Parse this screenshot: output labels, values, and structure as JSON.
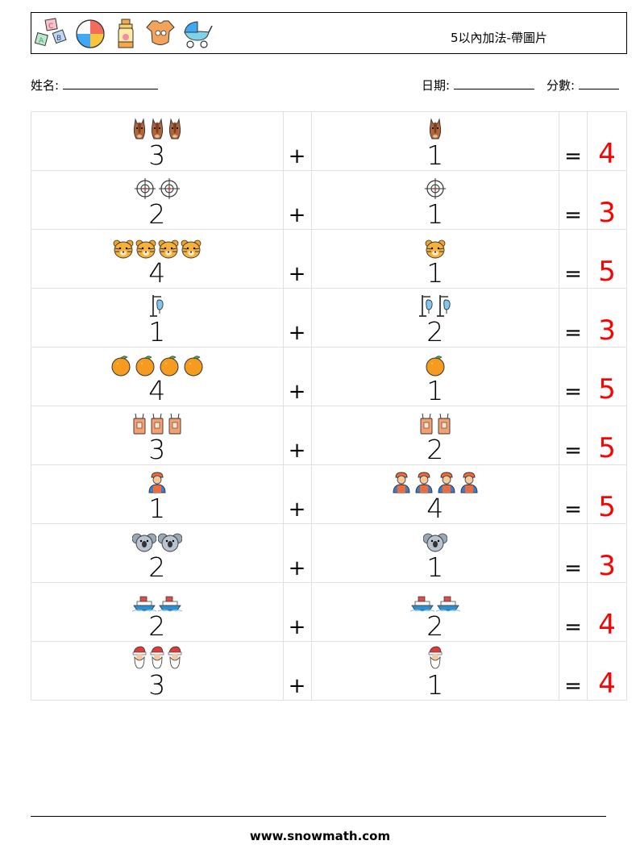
{
  "header": {
    "title": "5以內加法-帶圖片",
    "icons": [
      "abc-blocks-icon",
      "beach-ball-icon",
      "baby-bottle-icon",
      "baby-bodysuit-icon",
      "baby-stroller-icon"
    ]
  },
  "meta": {
    "name_label": "姓名:",
    "date_label": "日期:",
    "score_label": "分數:"
  },
  "problems": [
    {
      "a": "3",
      "a_icon": "horse-head-icon",
      "op": "+",
      "b": "1",
      "b_icon": "horse-head-icon",
      "eq": "=",
      "answer": "4"
    },
    {
      "a": "2",
      "a_icon": "crosshair-icon",
      "op": "+",
      "b": "1",
      "b_icon": "crosshair-icon",
      "eq": "=",
      "answer": "3"
    },
    {
      "a": "4",
      "a_icon": "tiger-face-icon",
      "op": "+",
      "b": "1",
      "b_icon": "tiger-face-icon",
      "eq": "=",
      "answer": "5"
    },
    {
      "a": "1",
      "a_icon": "iv-drip-icon",
      "op": "+",
      "b": "2",
      "b_icon": "iv-drip-icon",
      "eq": "=",
      "answer": "3"
    },
    {
      "a": "4",
      "a_icon": "orange-icon",
      "op": "+",
      "b": "1",
      "b_icon": "orange-icon",
      "eq": "=",
      "answer": "5"
    },
    {
      "a": "3",
      "a_icon": "paper-bag-icon",
      "op": "+",
      "b": "2",
      "b_icon": "paper-bag-icon",
      "eq": "=",
      "answer": "5"
    },
    {
      "a": "1",
      "a_icon": "worker-icon",
      "op": "+",
      "b": "4",
      "b_icon": "worker-icon",
      "eq": "=",
      "answer": "5"
    },
    {
      "a": "2",
      "a_icon": "koala-icon",
      "op": "+",
      "b": "1",
      "b_icon": "koala-icon",
      "eq": "=",
      "answer": "3"
    },
    {
      "a": "2",
      "a_icon": "ship-icon",
      "op": "+",
      "b": "2",
      "b_icon": "ship-icon",
      "eq": "=",
      "answer": "4"
    },
    {
      "a": "3",
      "a_icon": "santa-icon",
      "op": "+",
      "b": "1",
      "b_icon": "santa-icon",
      "eq": "=",
      "answer": "4"
    }
  ],
  "footer": {
    "website": "www.snowmath.com"
  }
}
